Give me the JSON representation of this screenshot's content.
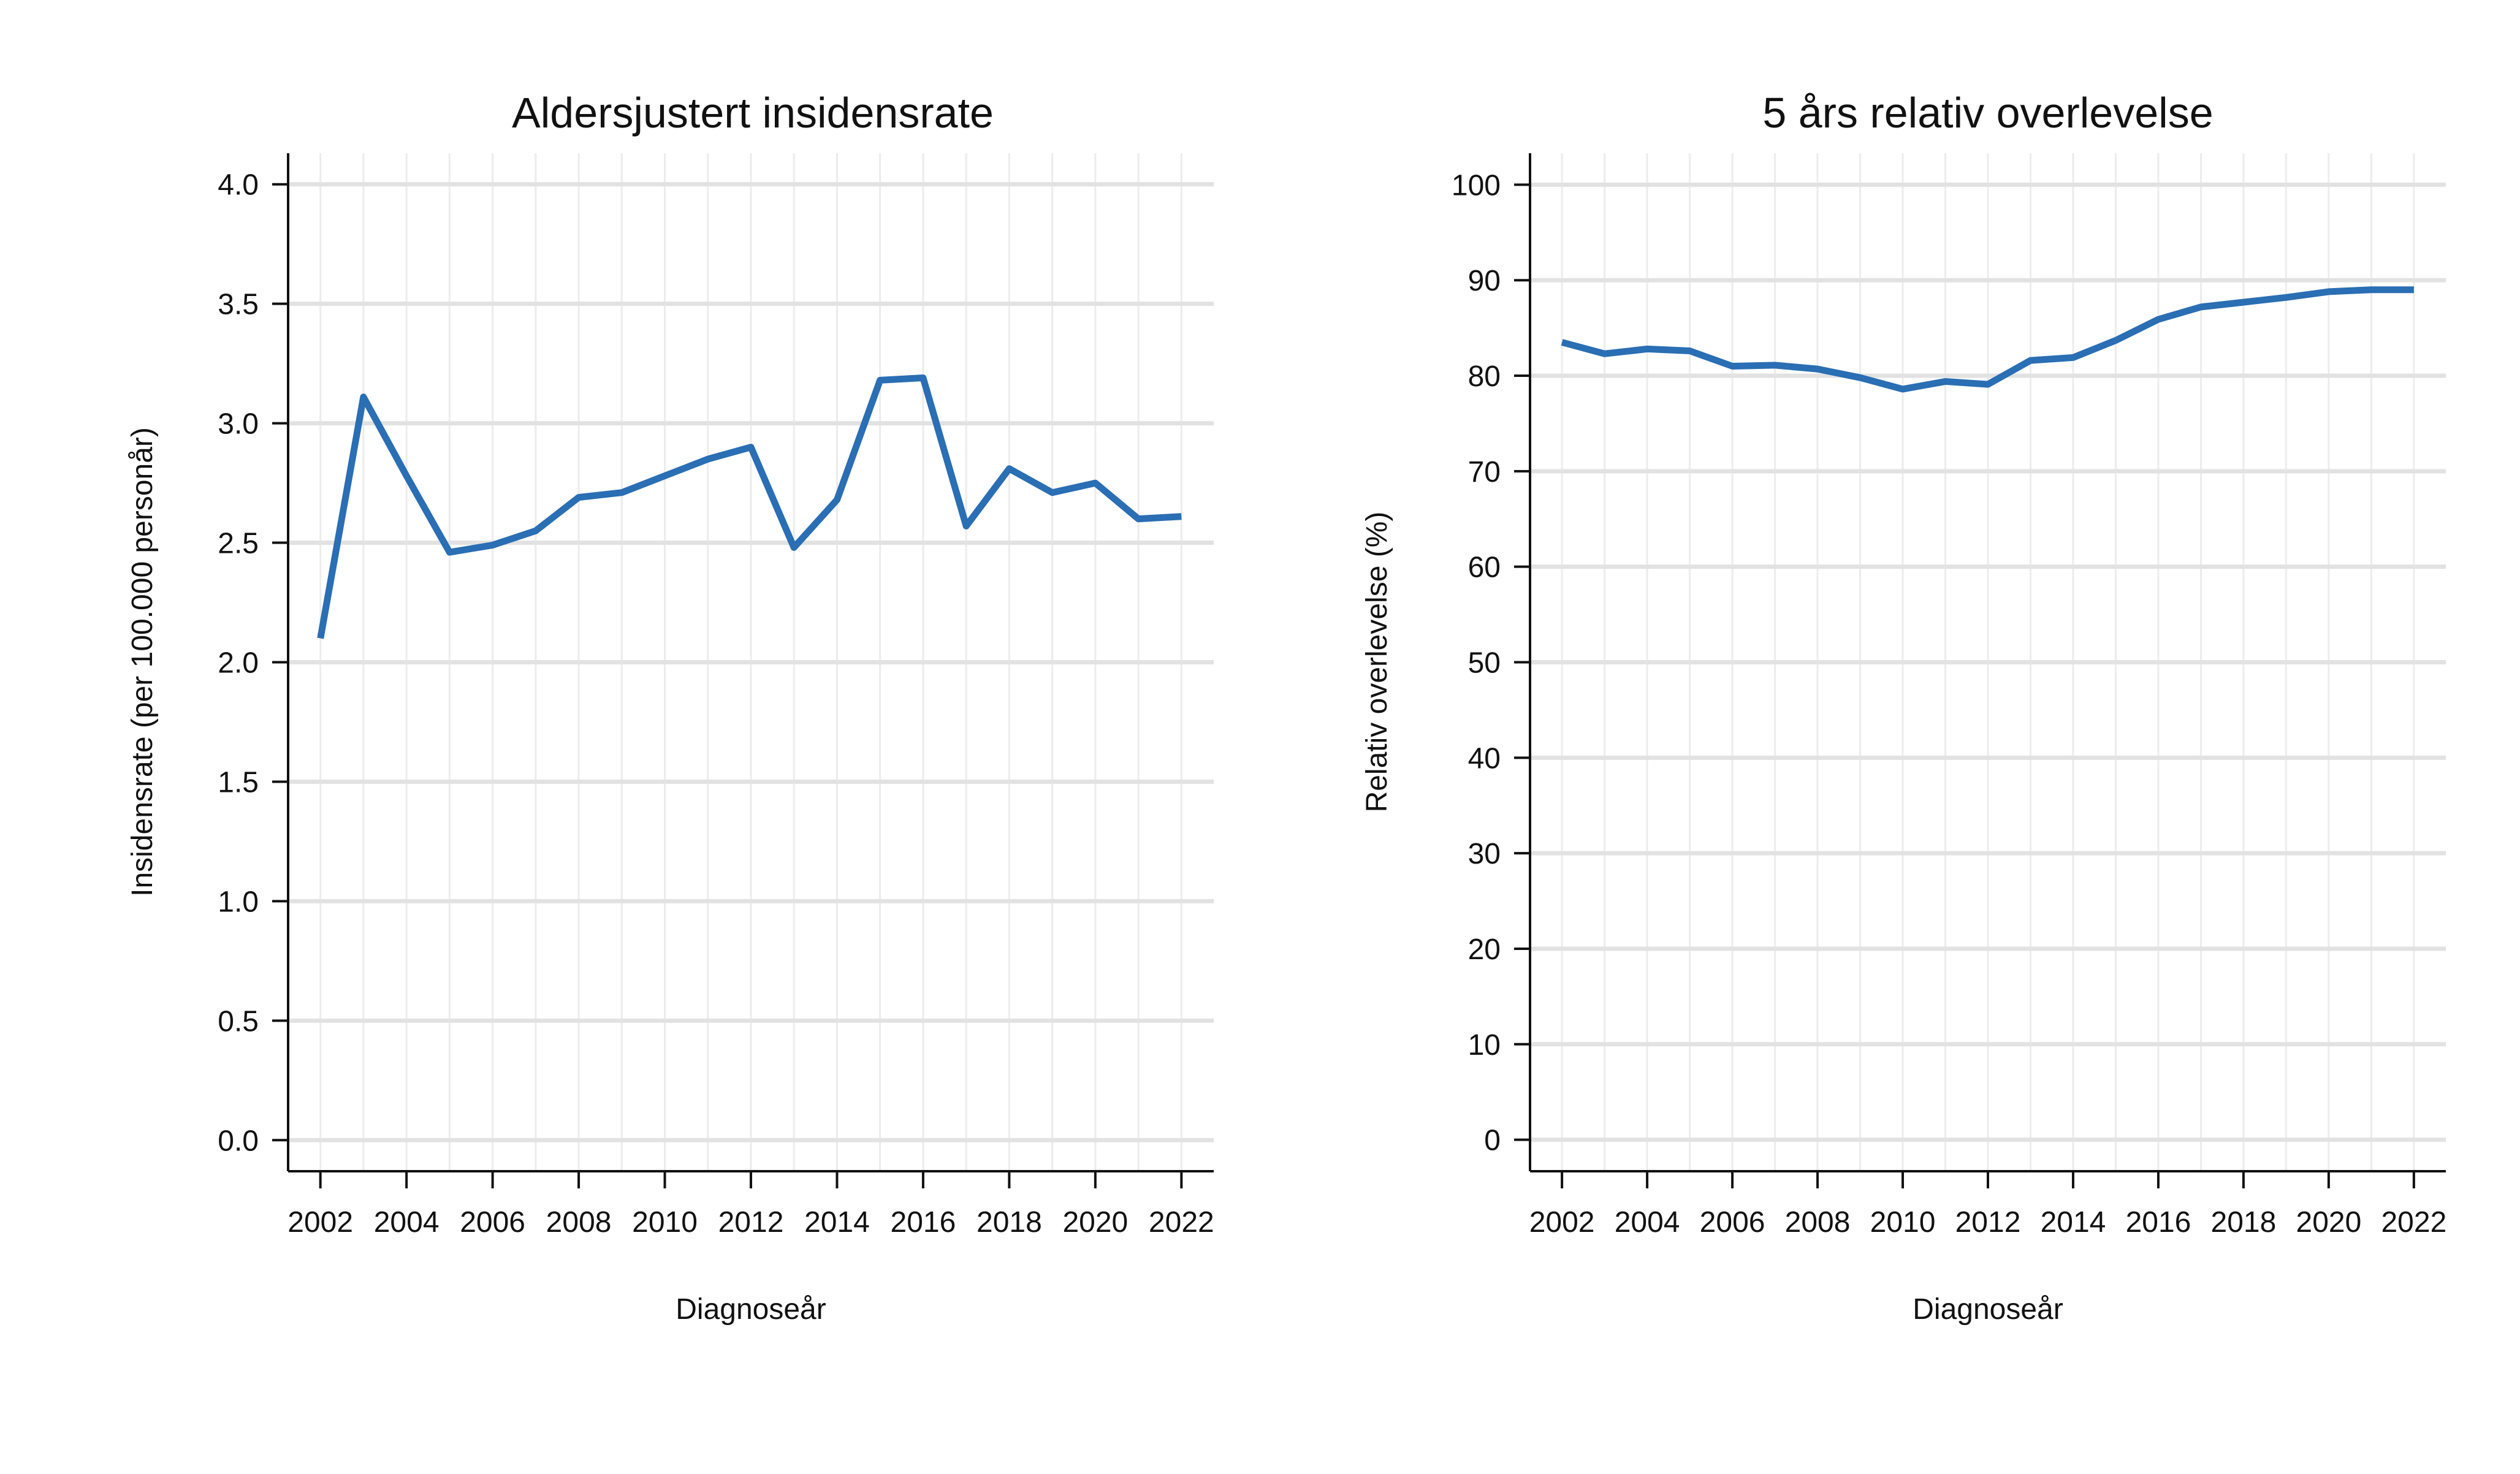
{
  "chart_data": [
    {
      "type": "line",
      "title": "Aldersjustert insidensrate",
      "xlabel": "Diagnoseår",
      "ylabel": "Insidensrate (per 100.000 personår)",
      "x": [
        2002,
        2003,
        2004,
        2005,
        2006,
        2007,
        2008,
        2009,
        2010,
        2011,
        2012,
        2013,
        2014,
        2015,
        2016,
        2017,
        2018,
        2019,
        2020,
        2021,
        2022
      ],
      "series": [
        {
          "values": [
            2.1,
            3.11,
            2.78,
            2.46,
            2.49,
            2.55,
            2.69,
            2.71,
            2.78,
            2.85,
            2.9,
            2.48,
            2.68,
            3.18,
            3.19,
            2.57,
            2.81,
            2.71,
            2.75,
            2.6,
            2.61
          ]
        }
      ],
      "xlim": [
        2001.25,
        2022.75
      ],
      "ylim": [
        -0.13,
        4.13
      ],
      "x_ticks": [
        2002,
        2004,
        2006,
        2008,
        2010,
        2012,
        2014,
        2016,
        2018,
        2020,
        2022
      ],
      "x_tick_labels": [
        "2002",
        "2004",
        "2006",
        "2008",
        "2010",
        "2012",
        "2014",
        "2016",
        "2018",
        "2020",
        "2022"
      ],
      "y_ticks": [
        0.0,
        0.5,
        1.0,
        1.5,
        2.0,
        2.5,
        3.0,
        3.5,
        4.0
      ],
      "y_tick_labels": [
        "0.0",
        "0.5",
        "1.0",
        "1.5",
        "2.0",
        "2.5",
        "3.0",
        "3.5",
        "4.0"
      ],
      "grid": true,
      "line_color": "#2a6eb4",
      "grid_color": "#e2e2e2"
    },
    {
      "type": "line",
      "title": "5 års relativ overlevelse",
      "xlabel": "Diagnoseår",
      "ylabel": "Relativ overlevelse (%)",
      "x": [
        2002,
        2003,
        2004,
        2005,
        2006,
        2007,
        2008,
        2009,
        2010,
        2011,
        2012,
        2013,
        2014,
        2015,
        2016,
        2017,
        2018,
        2019,
        2020,
        2021,
        2022
      ],
      "series": [
        {
          "values": [
            83.5,
            82.3,
            82.8,
            82.6,
            81.0,
            81.1,
            80.7,
            79.8,
            78.6,
            79.4,
            79.1,
            81.6,
            81.9,
            83.7,
            85.9,
            87.2,
            87.7,
            88.2,
            88.8,
            89.0,
            89.0
          ]
        }
      ],
      "xlim": [
        2001.25,
        2022.75
      ],
      "ylim": [
        -3.3,
        103.3
      ],
      "x_ticks": [
        2002,
        2004,
        2006,
        2008,
        2010,
        2012,
        2014,
        2016,
        2018,
        2020,
        2022
      ],
      "x_tick_labels": [
        "2002",
        "2004",
        "2006",
        "2008",
        "2010",
        "2012",
        "2014",
        "2016",
        "2018",
        "2020",
        "2022"
      ],
      "y_ticks": [
        0,
        10,
        20,
        30,
        40,
        50,
        60,
        70,
        80,
        90,
        100
      ],
      "y_tick_labels": [
        "0",
        "10",
        "20",
        "30",
        "40",
        "50",
        "60",
        "70",
        "80",
        "90",
        "100"
      ],
      "grid": true,
      "line_color": "#2a6eb4",
      "grid_color": "#e2e2e2"
    }
  ]
}
